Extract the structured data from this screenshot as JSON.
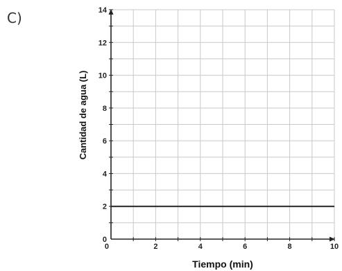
{
  "option_label": "C)",
  "chart_data": {
    "type": "line",
    "title": "",
    "xlabel": "Tiempo (min)",
    "ylabel": "Cantidad de agua (L)",
    "xlim": [
      0,
      10
    ],
    "ylim": [
      0,
      14
    ],
    "x_ticks": [
      "0",
      "2",
      "4",
      "6",
      "8",
      "10"
    ],
    "y_ticks": [
      "0",
      "2",
      "4",
      "6",
      "8",
      "10",
      "12",
      "14"
    ],
    "grid": true,
    "series": [
      {
        "x": [
          0,
          10
        ],
        "y": [
          2,
          2
        ]
      }
    ],
    "colors": {
      "grid": "#c9c9c9",
      "axis": "#222222",
      "line": "#222222"
    }
  }
}
